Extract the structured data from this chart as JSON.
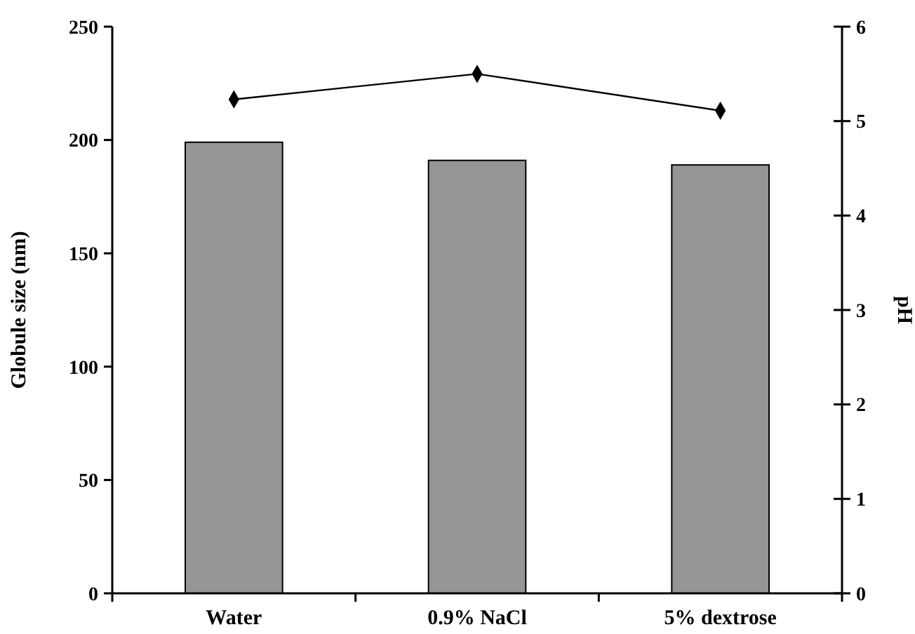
{
  "chart_data": {
    "type": "bar",
    "categories": [
      "Water",
      "0.9% NaCl",
      "5% dextrose"
    ],
    "ylabel": "Globule size (nm)",
    "y2label": "pH",
    "ylim": [
      0,
      250
    ],
    "yticks": [
      0,
      50,
      100,
      150,
      200,
      250
    ],
    "y2lim": [
      0,
      6
    ],
    "y2ticks": [
      0,
      1,
      2,
      3,
      4,
      5,
      6
    ],
    "grid": false,
    "series": [
      {
        "color": "#959595",
        "values": [
          199,
          191,
          189
        ]
      },
      {
        "type": "line",
        "axis": "y2",
        "color": "#000000",
        "marker": "diamond",
        "values": [
          5.23,
          5.5,
          5.11
        ]
      }
    ]
  }
}
